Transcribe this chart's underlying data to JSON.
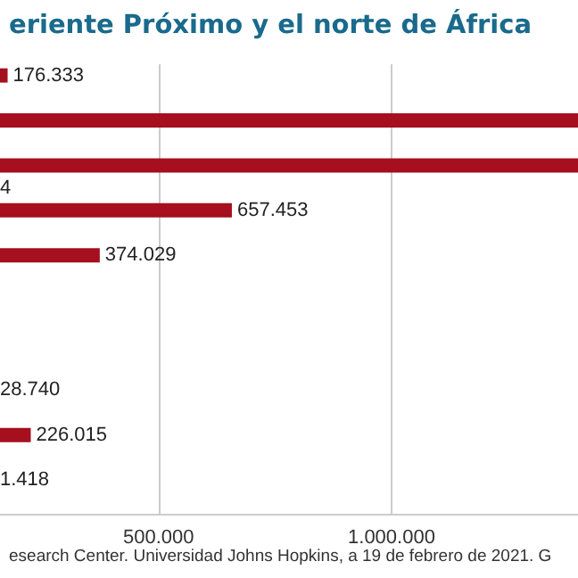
{
  "chart_data": {
    "type": "bar",
    "orientation": "horizontal",
    "title": "eriente Próximo y el norte de África",
    "categories": [
      null,
      null,
      null,
      null,
      null,
      null,
      null,
      null,
      null,
      null,
      null,
      null,
      null,
      null,
      null,
      null,
      null,
      null,
      null,
      null
    ],
    "values": [
      176333,
      null,
      1400000,
      null,
      1400000,
      null,
      657453,
      null,
      374029,
      null,
      null,
      null,
      null,
      null,
      null,
      null,
      226015,
      null,
      null,
      null
    ],
    "value_labels": [
      "176.333",
      null,
      null,
      null,
      null,
      "4",
      "657.453",
      null,
      "374.029",
      null,
      null,
      null,
      null,
      null,
      "28.740",
      null,
      "226.015",
      null,
      "1.418",
      null
    ],
    "color": "#a50f1e",
    "xlim": [
      160000,
      1400000
    ],
    "xticks": [
      {
        "value": 500000,
        "label": "500.000"
      },
      {
        "value": 1000000,
        "label": "1.000.000"
      }
    ],
    "grid": "x",
    "annotations": [
      "esearch Center. Universidad Johns Hopkins, a 19 de febrero de 2021. G"
    ]
  }
}
